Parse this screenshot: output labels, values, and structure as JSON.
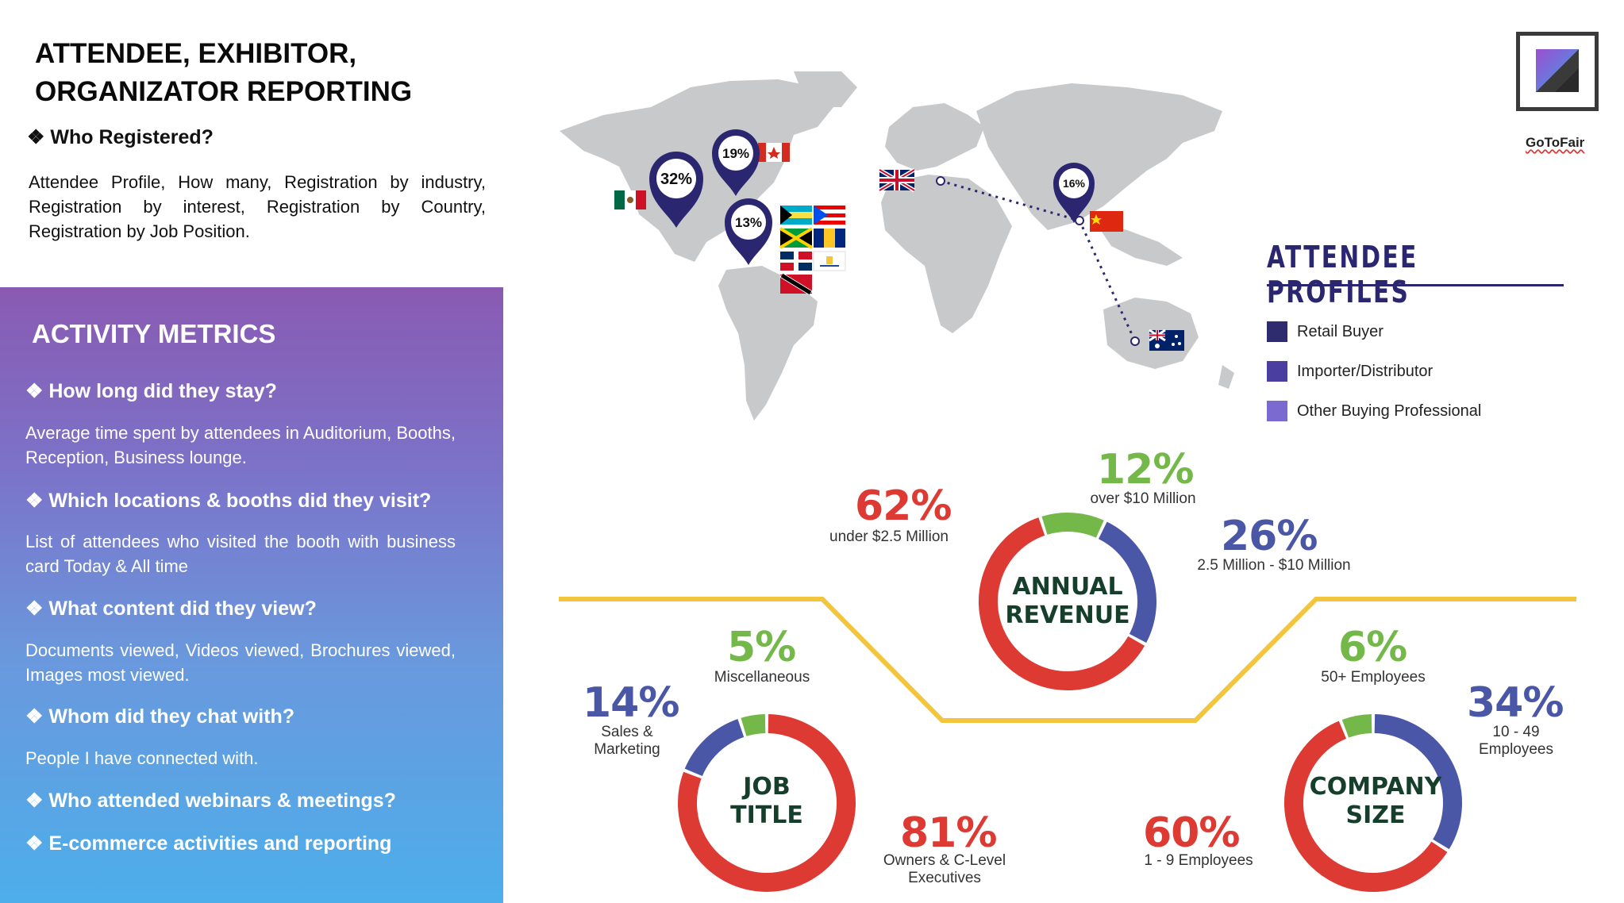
{
  "header": {
    "title_line1": "ATTENDEE, EXHIBITOR,",
    "title_line2": "ORGANIZATOR REPORTING",
    "who_heading": "❖ Who Registered?",
    "who_text": "Attendee Profile, How many, Registration by industry, Registration by interest, Registration by Country, Registration by Job Position."
  },
  "activity": {
    "heading": "ACTIVITY METRICS",
    "items": [
      {
        "q": "❖ How long did they stay?",
        "a": "Average time spent by attendees in Auditorium, Booths, Reception, Business lounge."
      },
      {
        "q": "❖ Which locations & booths did they visit?",
        "a": "List of attendees who visited the booth with business card Today & All time"
      },
      {
        "q": "❖ What content did they view?",
        "a": "Documents viewed, Videos viewed, Brochures viewed, Images most viewed."
      },
      {
        "q": "❖  Whom did they chat with?",
        "a": "People I have connected with."
      },
      {
        "q": "❖  Who attended webinars & meetings?",
        "a": ""
      },
      {
        "q": "❖  E-commerce activities and reporting",
        "a": ""
      }
    ]
  },
  "map": {
    "pins": [
      {
        "label": "32%"
      },
      {
        "label": "19%"
      },
      {
        "label": "13%"
      },
      {
        "label": "16%"
      }
    ]
  },
  "logo": {
    "text": "GoToFair",
    "icon": "gotofair-logo-icon"
  },
  "legend": {
    "title": "ATTENDEE PROFILES",
    "items": [
      {
        "label": "Retail Buyer",
        "color": "#2e2b6e"
      },
      {
        "label": "Importer/Distributor",
        "color": "#4a3fa0"
      },
      {
        "label": "Other Buying Professional",
        "color": "#7b6bd0"
      }
    ]
  },
  "colors": {
    "red": "#de3a34",
    "blue": "#4a56a6",
    "green": "#74b84a",
    "yellow": "#f2c53d"
  },
  "chart_data": [
    {
      "type": "pie",
      "title": "ANNUAL REVENUE",
      "categories": [
        "under $2.5 Million",
        "over $10 Million",
        "2.5 Million - $10 Million"
      ],
      "values": [
        62,
        12,
        26
      ],
      "labels": [
        "62%",
        "12%",
        "26%"
      ]
    },
    {
      "type": "pie",
      "title": "JOB TITLE",
      "categories": [
        "Owners & C-Level Executives",
        "Sales & Marketing",
        "Miscellaneous"
      ],
      "values": [
        81,
        14,
        5
      ],
      "labels": [
        "81%",
        "14%",
        "5%"
      ]
    },
    {
      "type": "pie",
      "title": "COMPANY SIZE",
      "categories": [
        "1 - 9 Employees",
        "10 - 49 Employees",
        "50+ Employees"
      ],
      "values": [
        60,
        34,
        6
      ],
      "labels": [
        "60%",
        "34%",
        "6%"
      ]
    }
  ],
  "labels": {
    "rev_title1": "ANNUAL",
    "rev_title2": "REVENUE",
    "job_title1": "JOB",
    "job_title2": "TITLE",
    "size_title1": "COMPANY",
    "size_title2": "SIZE",
    "rev_62": "62%",
    "rev_62_sub": "under $2.5 Million",
    "rev_12": "12%",
    "rev_12_sub": "over $10 Million",
    "rev_26": "26%",
    "rev_26_sub": "2.5 Million - $10 Million",
    "job_5": "5%",
    "job_5_sub": "Miscellaneous",
    "job_14": "14%",
    "job_14_sub1": "Sales &",
    "job_14_sub2": "Marketing",
    "job_81": "81%",
    "job_81_sub1": "Owners & C-Level",
    "job_81_sub2": "Executives",
    "size_6": "6%",
    "size_6_sub": "50+ Employees",
    "size_34": "34%",
    "size_34_sub1": "10 - 49",
    "size_34_sub2": "Employees",
    "size_60": "60%",
    "size_60_sub": "1 - 9 Employees"
  }
}
